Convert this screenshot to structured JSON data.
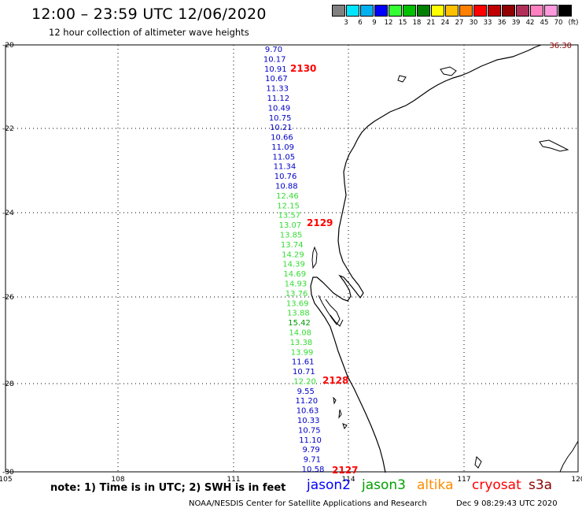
{
  "header": {
    "title": "12:00 – 23:59 UTC 12/06/2020",
    "subtitle": "12 hour collection of altimeter wave heights"
  },
  "color_scale": {
    "labels": [
      "3",
      "6",
      "9",
      "12",
      "15",
      "18",
      "21",
      "24",
      "27",
      "30",
      "33",
      "36",
      "39",
      "42",
      "45",
      "70"
    ],
    "unit": "(ft)",
    "colors": [
      "#808080",
      "#00e5ff",
      "#00b0f0",
      "#0000ff",
      "#33ff33",
      "#00c000",
      "#008000",
      "#ffff00",
      "#ffc000",
      "#ff8000",
      "#ff0000",
      "#c00000",
      "#900000",
      "#b0305a",
      "#ff80c0",
      "#ff99dd",
      "#000000"
    ]
  },
  "map": {
    "lat_labels": [
      "-20",
      "-22",
      "-24",
      "-26",
      "-28",
      "-30"
    ],
    "lon_labels": [
      "105",
      "108",
      "111",
      "114",
      "117",
      "120"
    ],
    "corner_value": "36.30"
  },
  "track": {
    "values": [
      "9.70",
      "10.17",
      "10.91",
      "10.67",
      "11.33",
      "11.12",
      "10.49",
      "10.75",
      "10.21",
      "10.66",
      "11.09",
      "11.05",
      "11.34",
      "10.76",
      "10.88",
      "12.46",
      "12.15",
      "13.57",
      "13.07",
      "13.85",
      "13.74",
      "14.29",
      "14.39",
      "14.69",
      "14.93",
      "13.76",
      "13.69",
      "13.88",
      "15.42",
      "14.08",
      "13.38",
      "13.99",
      "11.61",
      "10.71",
      "12.20",
      "9.55",
      "11.20",
      "10.63",
      "10.33",
      "10.75",
      "11.10",
      "9.79",
      "9.71",
      "10.58"
    ],
    "colors": [
      "#0000c8",
      "#0000c8",
      "#0000c8",
      "#0000c8",
      "#0000c8",
      "#0000c8",
      "#0000c8",
      "#0000c8",
      "#0000c8",
      "#0000c8",
      "#0000c8",
      "#0000c8",
      "#0000c8",
      "#0000c8",
      "#0000c8",
      "#33dd33",
      "#33dd33",
      "#33dd33",
      "#33dd33",
      "#33dd33",
      "#33dd33",
      "#33dd33",
      "#33dd33",
      "#33dd33",
      "#33dd33",
      "#33dd33",
      "#33dd33",
      "#33dd33",
      "#009900",
      "#33dd33",
      "#33dd33",
      "#33dd33",
      "#0000c8",
      "#0000c8",
      "#33dd33",
      "#0000c8",
      "#0000c8",
      "#0000c8",
      "#0000c8",
      "#0000c8",
      "#0000c8",
      "#0000c8",
      "#0000c8",
      "#0000c8"
    ],
    "times": [
      "2130",
      "2129",
      "2128",
      "2127"
    ],
    "time_color": "#ff0000"
  },
  "footer": {
    "note": "note: 1) Time is in UTC; 2) SWH is in feet",
    "satellites": [
      {
        "name": "jason2",
        "color": "#0000ff"
      },
      {
        "name": "jason3",
        "color": "#00a000"
      },
      {
        "name": "altika",
        "color": "#ff8c00"
      },
      {
        "name": "cryosat",
        "color": "#ff0000"
      },
      {
        "name": "s3a",
        "color": "#8b0000"
      }
    ],
    "credit": "NOAA/NESDIS Center for Satellite Applications and Research",
    "timestamp": "Dec  9 08:29:43 UTC 2020"
  }
}
